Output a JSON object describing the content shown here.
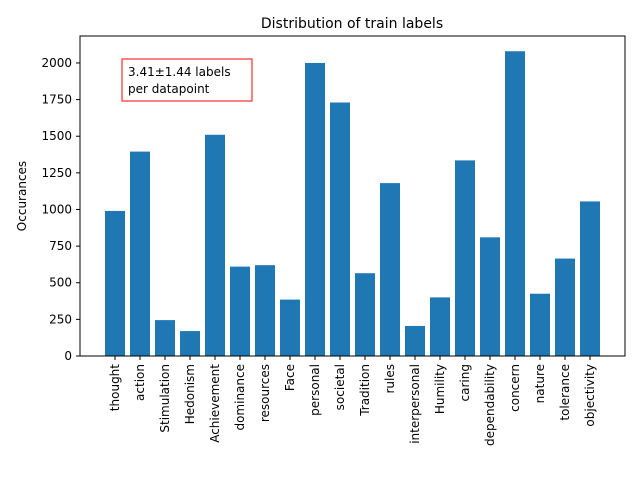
{
  "chart_data": {
    "type": "bar",
    "title": "Distribution of train labels",
    "xlabel": "",
    "ylabel": "Occurances",
    "ylim": [
      0,
      2184
    ],
    "yticks": [
      0,
      250,
      500,
      750,
      1000,
      1250,
      1500,
      1750,
      2000
    ],
    "grid": false,
    "bar_color": "#1f77b4",
    "categories": [
      "thought",
      "action",
      "Stimulation",
      "Hedonism",
      "Achievement",
      "dominance",
      "resources",
      "Face",
      "personal",
      "societal",
      "Tradition",
      "rules",
      "interpersonal",
      "Humility",
      "caring",
      "dependability",
      "concern",
      "nature",
      "tolerance",
      "objectivity"
    ],
    "values": [
      990,
      1395,
      245,
      170,
      1510,
      610,
      620,
      385,
      2000,
      1730,
      565,
      1180,
      205,
      400,
      1335,
      810,
      2080,
      425,
      665,
      1055
    ],
    "annotation": {
      "lines": [
        "3.41±1.44 labels",
        "per datapoint"
      ],
      "border_color": "#ff0000"
    }
  }
}
